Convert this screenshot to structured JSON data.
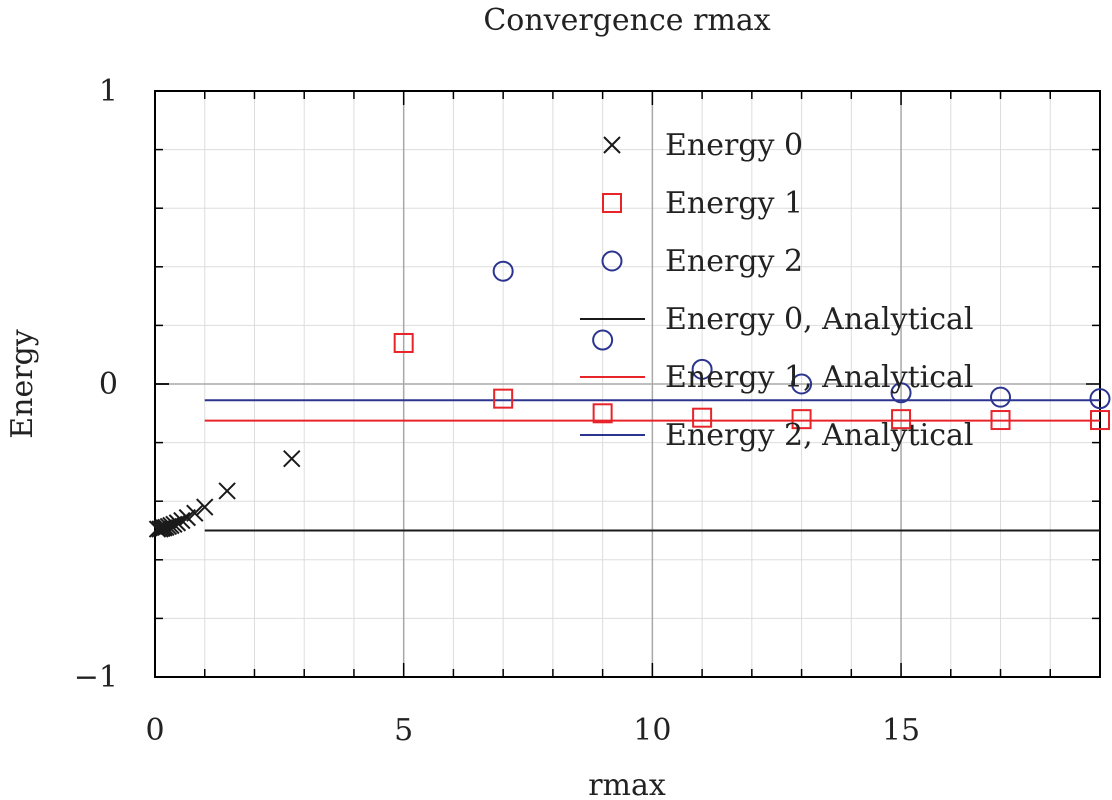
{
  "chart_data": {
    "type": "scatter",
    "title": "Convergence rmax",
    "xlabel": "rmax",
    "ylabel": "Energy",
    "xlim": [
      0,
      19
    ],
    "ylim": [
      -1,
      1
    ],
    "x_ticks": [
      0,
      5,
      10,
      15
    ],
    "x_tick_labels": [
      "0",
      "5",
      "10",
      "15"
    ],
    "y_ticks": [
      -1,
      0,
      1
    ],
    "y_tick_labels": [
      "−1",
      "0",
      "1"
    ],
    "grid": true,
    "legend_position": "top-right",
    "series": [
      {
        "name": "Energy 0",
        "marker": "x",
        "color": "#1a1a1a",
        "x": [
          0.05,
          0.1,
          0.14,
          0.18,
          0.22,
          0.27,
          0.32,
          0.38,
          0.45,
          0.54,
          0.65,
          0.8,
          1.0,
          1.45,
          2.75
        ],
        "y": [
          -0.495,
          -0.495,
          -0.493,
          -0.491,
          -0.489,
          -0.486,
          -0.483,
          -0.479,
          -0.474,
          -0.466,
          -0.456,
          -0.441,
          -0.42,
          -0.365,
          -0.255
        ]
      },
      {
        "name": "Energy 1",
        "marker": "square",
        "color": "#e8242b",
        "x": [
          5,
          7,
          9,
          11,
          13,
          15,
          17,
          19
        ],
        "y": [
          0.14,
          -0.05,
          -0.1,
          -0.115,
          -0.12,
          -0.12,
          -0.123,
          -0.123
        ]
      },
      {
        "name": "Energy 2",
        "marker": "circle",
        "color": "#2b3590",
        "x": [
          7,
          9,
          11,
          13,
          15,
          17,
          19
        ],
        "y": [
          0.385,
          0.15,
          0.05,
          0.0,
          -0.03,
          -0.045,
          -0.05
        ]
      },
      {
        "name": "Energy 0, Analytical",
        "type": "line",
        "color": "#1a1a1a",
        "x": [
          1,
          19
        ],
        "y": [
          -0.5,
          -0.5
        ]
      },
      {
        "name": "Energy 1, Analytical",
        "type": "line",
        "color": "#e8242b",
        "x": [
          1,
          19
        ],
        "y": [
          -0.125,
          -0.125
        ]
      },
      {
        "name": "Energy 2, Analytical",
        "type": "line",
        "color": "#2b3590",
        "x": [
          1,
          19
        ],
        "y": [
          -0.0556,
          -0.0556
        ]
      }
    ]
  }
}
